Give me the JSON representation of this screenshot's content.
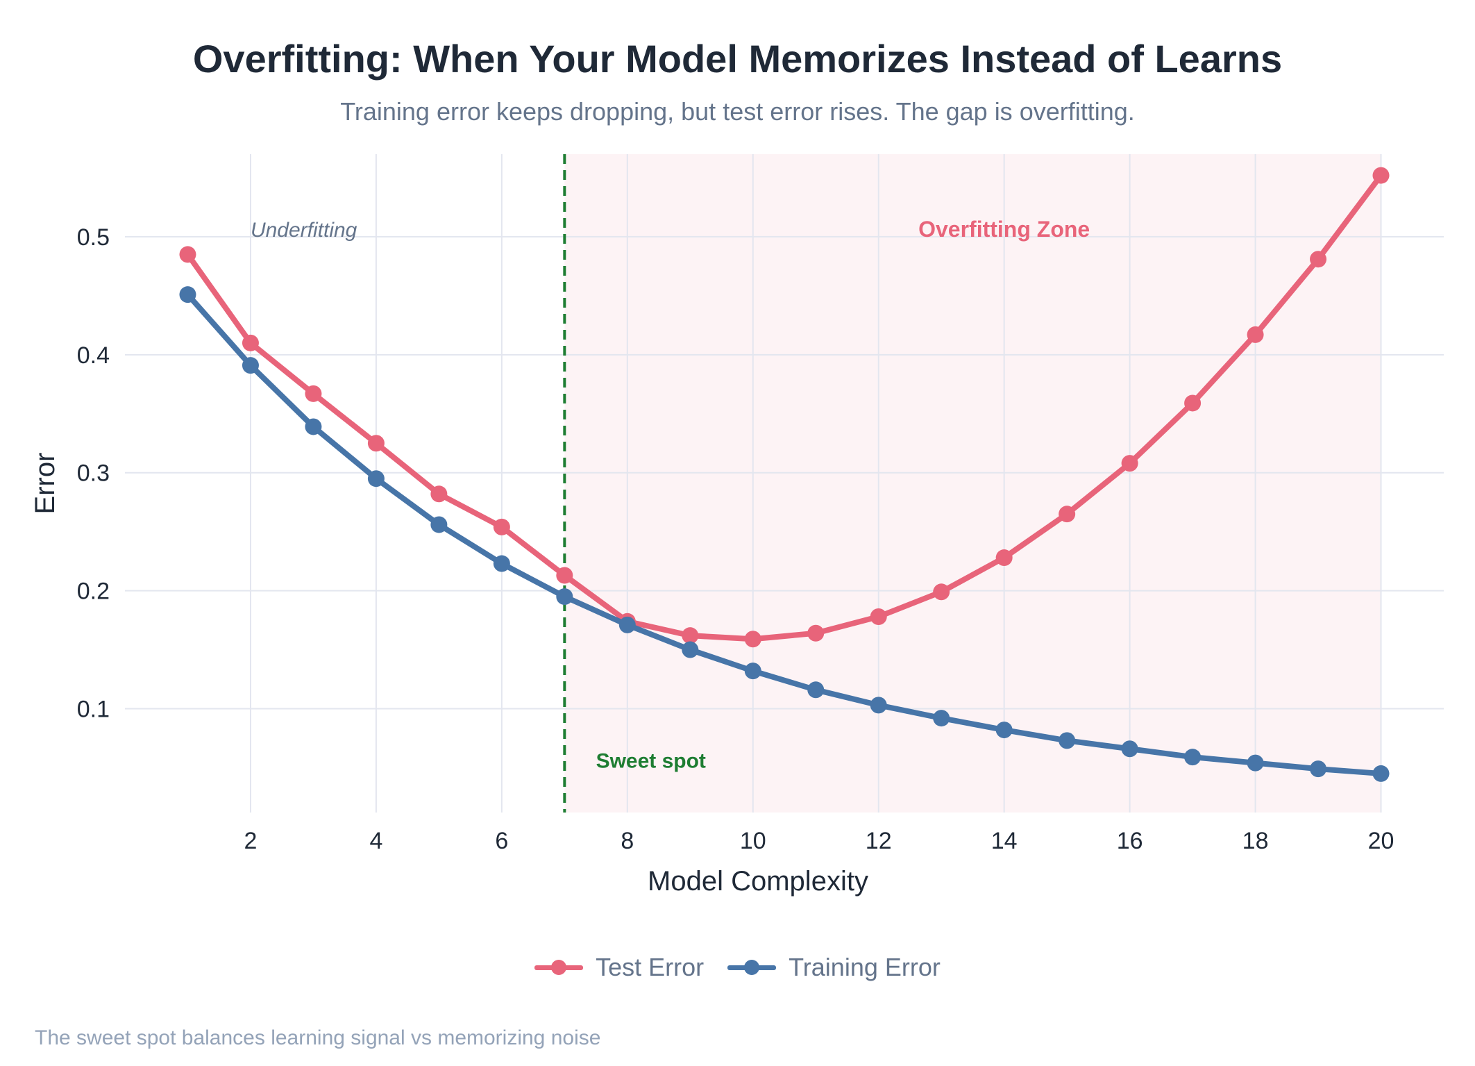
{
  "colors": {
    "test": "#e8647a",
    "train": "#4775a8",
    "sweet": "#1e7d32",
    "zone_fill": "#fdf3f5",
    "grid": "#e3e6ef",
    "axis_text": "#1f2937",
    "under_text": "#64748b"
  },
  "chart_data": {
    "type": "line",
    "title": "Overfitting: When Your Model Memorizes Instead of Learns",
    "subtitle": "Training error keeps dropping, but test error rises. The gap is overfitting.",
    "xlabel": "Model Complexity",
    "ylabel": "Error",
    "xlim": [
      0.0,
      21.0
    ],
    "ylim": [
      0.012,
      0.57
    ],
    "x_ticks": [
      2,
      4,
      6,
      8,
      10,
      12,
      14,
      16,
      18,
      20
    ],
    "x_tick_labels": [
      "2",
      "4",
      "6",
      "8",
      "10",
      "12",
      "14",
      "16",
      "18",
      "20"
    ],
    "y_ticks": [
      0.1,
      0.2,
      0.3,
      0.4,
      0.5
    ],
    "y_tick_labels": [
      "0.1",
      "0.2",
      "0.3",
      "0.4",
      "0.5"
    ],
    "grid": true,
    "x": [
      1,
      2,
      3,
      4,
      5,
      6,
      7,
      8,
      9,
      10,
      11,
      12,
      13,
      14,
      15,
      16,
      17,
      18,
      19,
      20
    ],
    "series": [
      {
        "name": "Test Error",
        "color_key": "test",
        "values": [
          0.485,
          0.41,
          0.367,
          0.325,
          0.282,
          0.254,
          0.213,
          0.174,
          0.162,
          0.159,
          0.164,
          0.178,
          0.199,
          0.228,
          0.265,
          0.308,
          0.359,
          0.417,
          0.481,
          0.552
        ]
      },
      {
        "name": "Training Error",
        "color_key": "train",
        "values": [
          0.451,
          0.391,
          0.339,
          0.295,
          0.256,
          0.223,
          0.195,
          0.171,
          0.15,
          0.132,
          0.116,
          0.103,
          0.092,
          0.082,
          0.073,
          0.066,
          0.059,
          0.054,
          0.049,
          0.045
        ]
      }
    ],
    "sweet_spot_x": 7,
    "overfitting_zone": [
      7,
      20
    ],
    "annotations": {
      "underfitting": {
        "text": "Underfitting",
        "x": 2,
        "y": 0.5
      },
      "overfitting": {
        "text": "Overfitting Zone",
        "x": 14,
        "y": 0.5
      },
      "sweet_spot": {
        "text": "Sweet spot",
        "x": 7.5,
        "y": 0.05
      }
    },
    "legend_position": "bottom-center"
  },
  "legend": {
    "test_label": "Test Error",
    "train_label": "Training Error"
  },
  "caption": "The sweet spot balances learning signal vs memorizing noise"
}
